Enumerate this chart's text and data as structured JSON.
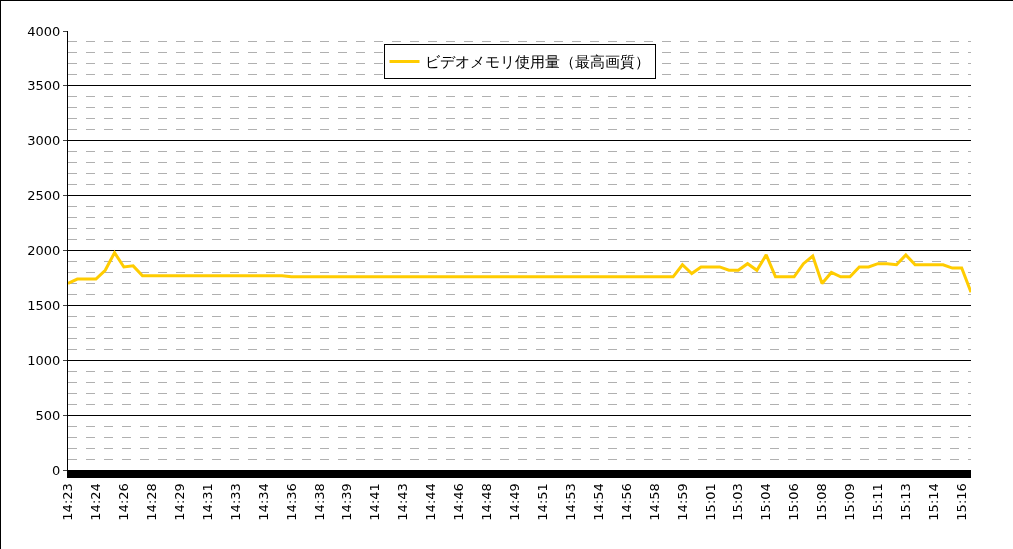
{
  "chart_data": {
    "type": "line",
    "categories": [
      "14:23",
      null,
      null,
      "14:24",
      null,
      null,
      "14:26",
      null,
      null,
      "14:28",
      null,
      null,
      "14:29",
      null,
      null,
      "14:31",
      null,
      null,
      "14:33",
      null,
      null,
      "14:34",
      null,
      null,
      "14:36",
      null,
      null,
      "14:38",
      null,
      null,
      "14:39",
      null,
      null,
      "14:41",
      null,
      null,
      "14:43",
      null,
      null,
      "14:44",
      null,
      null,
      "14:46",
      null,
      null,
      "14:48",
      null,
      null,
      "14:49",
      null,
      null,
      "14:51",
      null,
      null,
      "14:53",
      null,
      null,
      "14:54",
      null,
      null,
      "14:56",
      null,
      null,
      "14:58",
      null,
      null,
      "14:59",
      null,
      null,
      "15:01",
      null,
      null,
      "15:03",
      null,
      null,
      "15:04",
      null,
      null,
      "15:06",
      null,
      null,
      "15:08",
      null,
      null,
      "15:09",
      null,
      null,
      "15:11",
      null,
      null,
      "15:13",
      null,
      null,
      "15:14",
      null,
      null,
      "15:16",
      null
    ],
    "series": [
      {
        "name": "ビデオメモリ使用量（最高画質）",
        "color": "#ffcc00",
        "values": [
          1700,
          1740,
          1740,
          1740,
          1820,
          1980,
          1850,
          1860,
          1770,
          1770,
          1770,
          1770,
          1770,
          1770,
          1770,
          1770,
          1770,
          1770,
          1770,
          1770,
          1770,
          1770,
          1770,
          1770,
          1760,
          1760,
          1760,
          1760,
          1760,
          1760,
          1760,
          1760,
          1760,
          1760,
          1760,
          1760,
          1760,
          1760,
          1760,
          1760,
          1760,
          1760,
          1760,
          1760,
          1760,
          1760,
          1760,
          1760,
          1760,
          1760,
          1760,
          1760,
          1760,
          1760,
          1760,
          1760,
          1760,
          1760,
          1760,
          1760,
          1760,
          1760,
          1760,
          1760,
          1760,
          1760,
          1870,
          1790,
          1850,
          1850,
          1850,
          1820,
          1820,
          1880,
          1820,
          1960,
          1760,
          1760,
          1760,
          1880,
          1950,
          1700,
          1800,
          1760,
          1760,
          1850,
          1850,
          1880,
          1880,
          1870,
          1960,
          1870,
          1870,
          1870,
          1870,
          1840,
          1840,
          1620
        ]
      }
    ],
    "ylim": [
      0,
      4000
    ],
    "yticks": [
      0,
      {
        "value": 100,
        "label": null
      },
      {
        "value": 200,
        "label": null
      },
      {
        "value": 300,
        "label": null
      },
      {
        "value": 400,
        "label": null
      },
      500,
      {
        "value": 600,
        "label": null
      },
      {
        "value": 700,
        "label": null
      },
      {
        "value": 800,
        "label": null
      },
      {
        "value": 900,
        "label": null
      },
      1000,
      {
        "value": 1100,
        "label": null
      },
      {
        "value": 1200,
        "label": null
      },
      {
        "value": 1300,
        "label": null
      },
      {
        "value": 1400,
        "label": null
      },
      1500,
      {
        "value": 1600,
        "label": null
      },
      {
        "value": 1700,
        "label": null
      },
      {
        "value": 1800,
        "label": null
      },
      {
        "value": 1900,
        "label": null
      },
      2000,
      {
        "value": 2100,
        "label": null
      },
      {
        "value": 2200,
        "label": null
      },
      {
        "value": 2300,
        "label": null
      },
      {
        "value": 2400,
        "label": null
      },
      2500,
      {
        "value": 2600,
        "label": null
      },
      {
        "value": 2700,
        "label": null
      },
      {
        "value": 2800,
        "label": null
      },
      {
        "value": 2900,
        "label": null
      },
      3000,
      {
        "value": 3100,
        "label": null
      },
      {
        "value": 3200,
        "label": null
      },
      {
        "value": 3300,
        "label": null
      },
      {
        "value": 3400,
        "label": null
      },
      3500,
      {
        "value": 3600,
        "label": null
      },
      {
        "value": 3700,
        "label": null
      },
      {
        "value": 3800,
        "label": null
      },
      {
        "value": 3900,
        "label": null
      },
      4000
    ],
    "grid": "y",
    "legend": "top",
    "marker": "none",
    "line_style": "solid"
  }
}
